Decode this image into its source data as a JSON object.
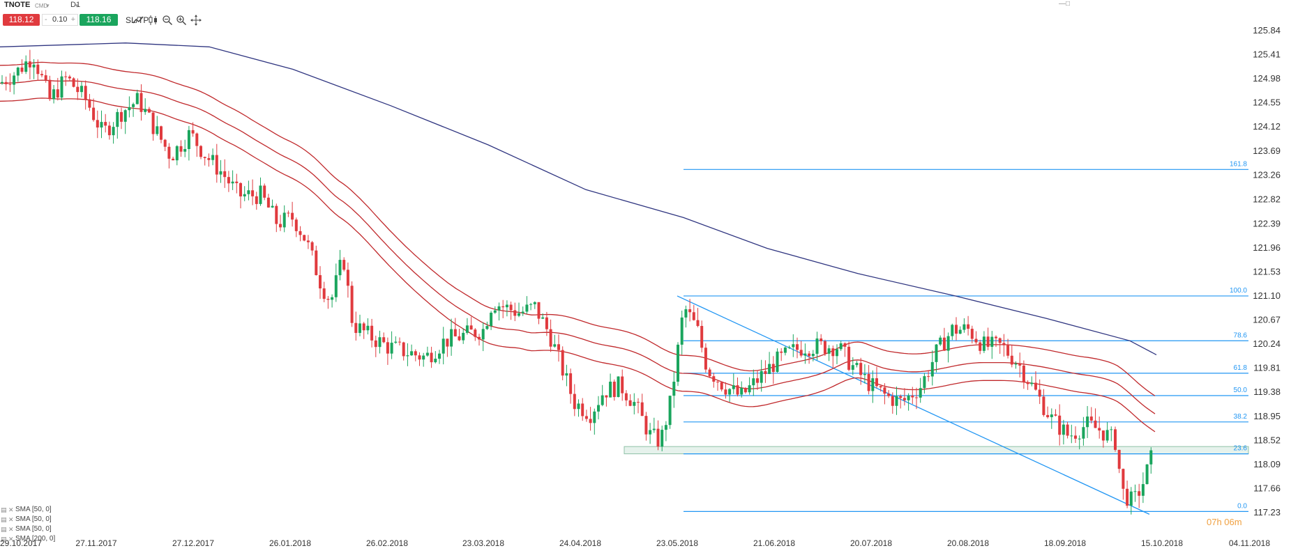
{
  "header": {
    "symbol": "TNOTE",
    "symbol_type": "CMD",
    "timeframe": "D1"
  },
  "toolbar": {
    "sell_price": "118.12",
    "lot_minus": "-",
    "lot_value": "0.10",
    "lot_plus": "+",
    "buy_price": "118.16",
    "sltp_label": "SL/TP",
    "icons": [
      "line-chart-icon",
      "candles-icon",
      "zoom-out-icon",
      "zoom-in-icon",
      "crosshair-icon"
    ]
  },
  "colors": {
    "bull": "#1aa55d",
    "bear": "#e03a3e",
    "sma_red": "#c0282b",
    "sma200": "#2f3580",
    "fib": "#2196f3",
    "countdown": "#f0a040"
  },
  "chart_data": {
    "type": "candlestick",
    "y_axis_ticks": [
      "125.84",
      "125.41",
      "124.98",
      "124.55",
      "124.12",
      "123.69",
      "123.26",
      "122.82",
      "122.39",
      "121.96",
      "121.53",
      "121.10",
      "120.67",
      "120.24",
      "119.81",
      "119.38",
      "118.95",
      "118.52",
      "118.09",
      "117.66",
      "117.23"
    ],
    "x_axis_ticks": [
      "29.10.2017",
      "27.11.2017",
      "27.12.2017",
      "26.01.2018",
      "26.02.2018",
      "23.03.2018",
      "24.04.2018",
      "23.05.2018",
      "21.06.2018",
      "20.07.2018",
      "20.08.2018",
      "18.09.2018",
      "15.10.2018",
      "04.11.2018"
    ],
    "ylim": [
      117.05,
      126.05
    ],
    "fib_levels": [
      {
        "label": "161.8",
        "price": 123.36
      },
      {
        "label": "100.0",
        "price": 121.1
      },
      {
        "label": "78.6",
        "price": 120.3
      },
      {
        "label": "61.8",
        "price": 119.72
      },
      {
        "label": "50.0",
        "price": 119.32
      },
      {
        "label": "38.2",
        "price": 118.85
      },
      {
        "label": "23.6",
        "price": 118.28
      },
      {
        "label": "0.0",
        "price": 117.25
      }
    ],
    "support_zone": {
      "low": 118.28,
      "high": 118.41
    },
    "trendline": {
      "from_date": "23.05.2018",
      "from_price": 121.1,
      "to_date": "08.10.2018",
      "to_price": 117.25
    },
    "series": [
      {
        "name": "SMA [50, 0]"
      },
      {
        "name": "SMA [50, 0]"
      },
      {
        "name": "SMA [50, 0]"
      },
      {
        "name": "SMA [200, 0]"
      }
    ]
  },
  "countdown": "07h 06m"
}
